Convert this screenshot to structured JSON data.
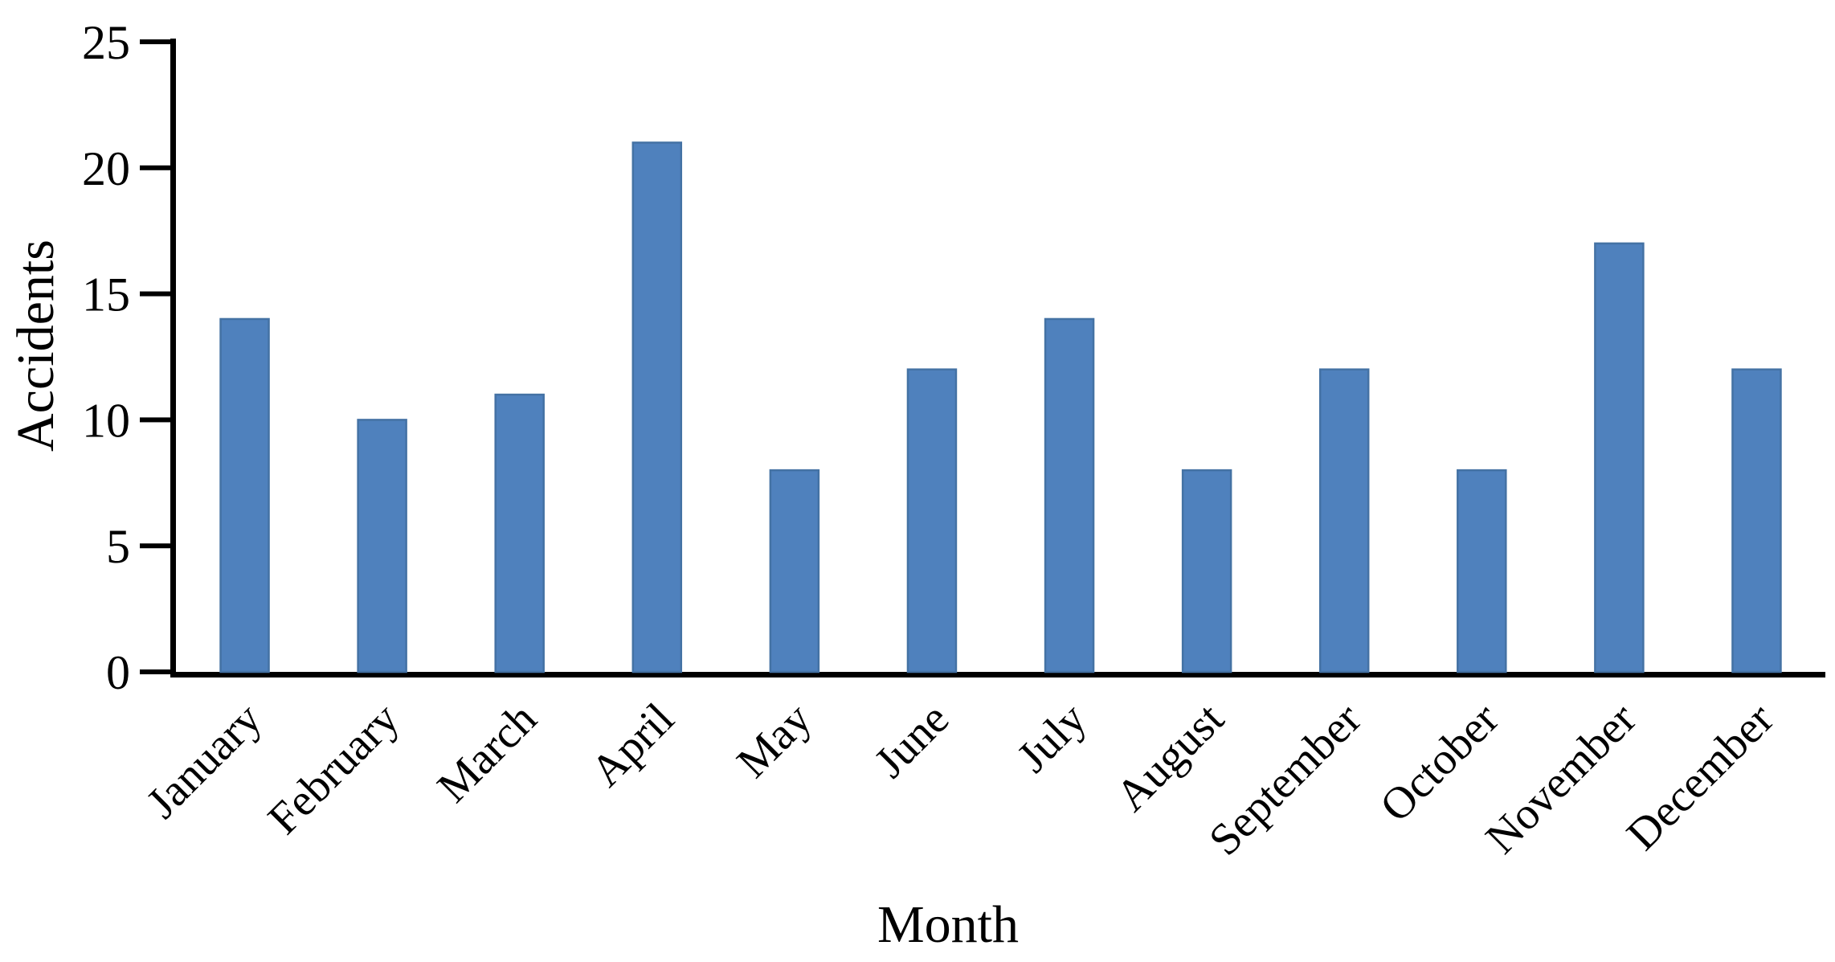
{
  "chart_data": {
    "type": "bar",
    "title": "",
    "categories": [
      "January",
      "February",
      "March",
      "April",
      "May",
      "June",
      "July",
      "August",
      "September",
      "October",
      "November",
      "December"
    ],
    "values": [
      14,
      10,
      11,
      21,
      8,
      12,
      14,
      8,
      12,
      8,
      17,
      12
    ],
    "xlabel": "Month",
    "ylabel": "Accidents",
    "ylim": [
      0,
      25
    ],
    "yticks": [
      0,
      5,
      10,
      15,
      20,
      25
    ],
    "grid": false,
    "legend": "none",
    "bar_color": "#4f81bd",
    "bar_edge_color": "#4472a4",
    "axis_color": "#000000",
    "text_color": "#000000",
    "background": "#ffffff"
  }
}
